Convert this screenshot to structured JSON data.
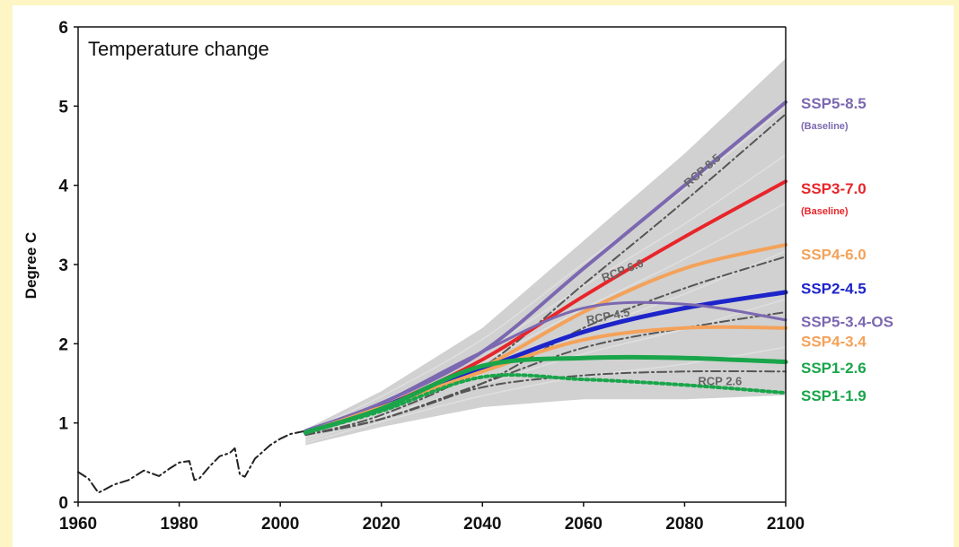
{
  "chart_data": {
    "type": "line",
    "title": "Temperature change",
    "ylabel": "Degree C",
    "xlabel": "",
    "xlim": [
      1960,
      2100
    ],
    "ylim": [
      0,
      6
    ],
    "x_ticks": [
      1960,
      1980,
      2000,
      2020,
      2040,
      2060,
      2080,
      2100
    ],
    "y_ticks": [
      0,
      1,
      2,
      3,
      4,
      5,
      6
    ],
    "grid": false,
    "uncertainty_band": {
      "color": "#c9c9c9",
      "x": [
        2005,
        2020,
        2040,
        2060,
        2080,
        2100
      ],
      "lower": [
        0.72,
        0.95,
        1.2,
        1.3,
        1.3,
        1.35
      ],
      "upper": [
        0.92,
        1.4,
        2.2,
        3.3,
        4.4,
        5.6
      ]
    },
    "series": [
      {
        "name": "historical",
        "color": "#222222",
        "dash": "dashdot",
        "x": [
          1960,
          1962,
          1964,
          1965,
          1967,
          1970,
          1973,
          1976,
          1978,
          1980,
          1982,
          1983,
          1984,
          1986,
          1988,
          1990,
          1991,
          1992,
          1993,
          1995,
          1998,
          2000,
          2002,
          2005
        ],
        "y": [
          0.38,
          0.3,
          0.12,
          0.15,
          0.22,
          0.28,
          0.4,
          0.33,
          0.42,
          0.5,
          0.52,
          0.28,
          0.3,
          0.45,
          0.58,
          0.62,
          0.68,
          0.35,
          0.32,
          0.55,
          0.72,
          0.8,
          0.86,
          0.9
        ]
      },
      {
        "name": "SSP5-8.5",
        "sub": "(Baseline)",
        "color": "#7b68b0",
        "width": 4,
        "x": [
          2005,
          2020,
          2040,
          2060,
          2080,
          2100
        ],
        "y": [
          0.9,
          1.25,
          1.9,
          2.95,
          4.0,
          5.05
        ]
      },
      {
        "name": "SSP3-7.0",
        "sub": "(Baseline)",
        "color": "#e8252a",
        "width": 4,
        "x": [
          2005,
          2020,
          2040,
          2060,
          2080,
          2100
        ],
        "y": [
          0.88,
          1.2,
          1.8,
          2.6,
          3.35,
          4.05
        ]
      },
      {
        "name": "SSP4-6.0",
        "color": "#f4a25a",
        "width": 4,
        "x": [
          2005,
          2020,
          2040,
          2060,
          2080,
          2100
        ],
        "y": [
          0.88,
          1.2,
          1.7,
          2.4,
          2.95,
          3.25
        ]
      },
      {
        "name": "SSP2-4.5",
        "color": "#1d24c9",
        "width": 5,
        "x": [
          2005,
          2020,
          2040,
          2060,
          2080,
          2100
        ],
        "y": [
          0.88,
          1.2,
          1.68,
          2.15,
          2.45,
          2.65
        ]
      },
      {
        "name": "SSP5-3.4-OS",
        "color": "#7b68b0",
        "width": 3,
        "x": [
          2005,
          2020,
          2040,
          2060,
          2080,
          2100
        ],
        "y": [
          0.9,
          1.25,
          1.9,
          2.45,
          2.5,
          2.3
        ]
      },
      {
        "name": "SSP4-3.4",
        "color": "#f4a25a",
        "width": 4,
        "x": [
          2005,
          2020,
          2040,
          2060,
          2080,
          2100
        ],
        "y": [
          0.88,
          1.2,
          1.65,
          2.05,
          2.2,
          2.2
        ]
      },
      {
        "name": "SSP1-2.6",
        "color": "#19a54a",
        "width": 5,
        "x": [
          2005,
          2020,
          2040,
          2060,
          2080,
          2100
        ],
        "y": [
          0.88,
          1.18,
          1.72,
          1.82,
          1.82,
          1.77
        ]
      },
      {
        "name": "SSP1-1.9",
        "color": "#19a54a",
        "width": 4,
        "dash": "dotted",
        "x": [
          2005,
          2020,
          2040,
          2060,
          2080,
          2100
        ],
        "y": [
          0.88,
          1.15,
          1.58,
          1.55,
          1.48,
          1.38
        ]
      },
      {
        "name": "RCP 8.5",
        "color": "#555555",
        "width": 2,
        "dash": "dashdot",
        "x": [
          2005,
          2020,
          2040,
          2060,
          2080,
          2100
        ],
        "y": [
          0.85,
          1.1,
          1.7,
          2.75,
          3.8,
          4.9
        ]
      },
      {
        "name": "RCP 6.0",
        "color": "#555555",
        "width": 2,
        "dash": "dashdot",
        "x": [
          2005,
          2020,
          2040,
          2060,
          2080,
          2100
        ],
        "y": [
          0.85,
          1.05,
          1.5,
          2.2,
          2.7,
          3.1
        ]
      },
      {
        "name": "RCP 4.5",
        "color": "#555555",
        "width": 2,
        "dash": "dashdot",
        "x": [
          2005,
          2020,
          2040,
          2060,
          2080,
          2100
        ],
        "y": [
          0.85,
          1.05,
          1.5,
          1.95,
          2.2,
          2.4
        ]
      },
      {
        "name": "RCP 2.6",
        "color": "#555555",
        "width": 2,
        "dash": "dashdot",
        "x": [
          2005,
          2020,
          2040,
          2060,
          2080,
          2100
        ],
        "y": [
          0.85,
          1.05,
          1.45,
          1.6,
          1.65,
          1.65
        ]
      }
    ],
    "right_labels": [
      {
        "series": "SSP5-8.5",
        "text": "SSP5-8.5",
        "sub": "(Baseline)",
        "color": "#7b68b0",
        "y": 5.04
      },
      {
        "series": "SSP3-7.0",
        "text": "SSP3-7.0",
        "sub": "(Baseline)",
        "color": "#e8252a",
        "y": 3.96
      },
      {
        "series": "SSP4-6.0",
        "text": "SSP4-6.0",
        "color": "#f4a25a",
        "y": 3.13
      },
      {
        "series": "SSP2-4.5",
        "text": "SSP2-4.5",
        "color": "#1d24c9",
        "y": 2.7
      },
      {
        "series": "SSP5-3.4-OS",
        "text": "SSP5-3.4-OS",
        "color": "#7b68b0",
        "y": 2.28
      },
      {
        "series": "SSP4-3.4",
        "text": "SSP4-3.4",
        "color": "#f4a25a",
        "y": 2.03
      },
      {
        "series": "SSP1-2.6",
        "text": "SSP1-2.6",
        "color": "#19a54a",
        "y": 1.7
      },
      {
        "series": "SSP1-1.9",
        "text": "SSP1-1.9",
        "color": "#19a54a",
        "y": 1.35
      }
    ],
    "annotations": [
      {
        "text": "RCP 8.5",
        "x": 2084,
        "y": 4.15
      },
      {
        "text": "RCP 6.0",
        "x": 2068,
        "y": 2.88
      },
      {
        "text": "RCP 4.5",
        "x": 2065,
        "y": 2.3
      },
      {
        "text": "RCP 2.6",
        "x": 2087,
        "y": 1.48
      }
    ]
  }
}
